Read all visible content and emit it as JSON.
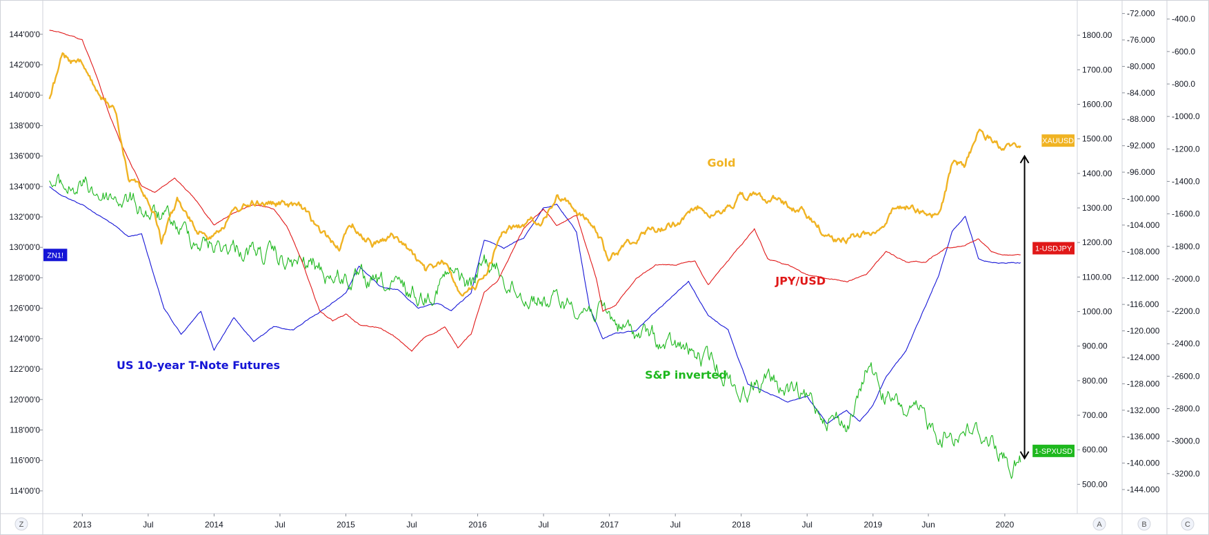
{
  "chart_data": {
    "type": "line",
    "x_tick_labels": [
      "2013",
      "Jul",
      "2014",
      "Jul",
      "2015",
      "Jul",
      "2016",
      "Jul",
      "2017",
      "Jul",
      "2018",
      "Jul",
      "2019",
      "Jun",
      "2020"
    ],
    "left_axis": {
      "ylim": [
        113.0,
        145.8
      ],
      "ticks": [
        "144'00'0",
        "142'00'0",
        "140'00'0",
        "138'00'0",
        "136'00'0",
        "134'00'0",
        "132'00'0",
        "130'00'0",
        "128'00'0",
        "126'00'0",
        "124'00'0",
        "122'00'0",
        "120'00'0",
        "118'00'0",
        "116'00'0",
        "114'00'0"
      ]
    },
    "axis_a": {
      "ylim": [
        437,
        1882
      ],
      "ticks": [
        "1800.00",
        "1700.00",
        "1600.00",
        "1500.00",
        "1400.00",
        "1300.00",
        "1200.00",
        "1100.00",
        "1000.00",
        "900.00",
        "800.00",
        "700.00",
        "600.00",
        "500.00"
      ]
    },
    "axis_b": {
      "ylim": [
        -146.5,
        -71.0
      ],
      "ticks": [
        "-72.000",
        "-76.000",
        "-80.000",
        "-84.000",
        "-88.000",
        "-92.000",
        "-96.000",
        "-100.000",
        "-104.000",
        "-108.000",
        "-112.000",
        "-116.000",
        "-120.000",
        "-124.000",
        "-128.000",
        "-132.000",
        "-136.000",
        "-140.000",
        "-144.000"
      ]
    },
    "axis_c": {
      "ylim": [
        -3400,
        -325
      ],
      "ticks": [
        "-400.0",
        "-600.0",
        "-800.0",
        "-1000.0",
        "-1200.0",
        "-1400.0",
        "-1600.0",
        "-1800.0",
        "-2000.0",
        "-2200.0",
        "-2400.0",
        "-2600.0",
        "-2800.0",
        "-3000.0",
        "-3200.0"
      ]
    },
    "axis_letters": [
      "Z",
      "A",
      "B",
      "C"
    ],
    "series": [
      {
        "name": "US 10-year T-Note Futures",
        "symbol": "ZN1!",
        "axis": "left",
        "color": "#1515d6",
        "x": [
          2012.75,
          2012.85,
          2013.0,
          2013.2,
          2013.35,
          2013.45,
          2013.55,
          2013.62,
          2013.75,
          2013.9,
          2014.0,
          2014.15,
          2014.3,
          2014.45,
          2014.6,
          2014.75,
          2014.85,
          2015.0,
          2015.1,
          2015.25,
          2015.4,
          2015.55,
          2015.7,
          2015.8,
          2015.95,
          2016.05,
          2016.2,
          2016.35,
          2016.5,
          2016.6,
          2016.75,
          2016.85,
          2016.95,
          2017.05,
          2017.2,
          2017.35,
          2017.5,
          2017.6,
          2017.75,
          2017.9,
          2018.05,
          2018.2,
          2018.35,
          2018.5,
          2018.65,
          2018.8,
          2018.9,
          2019.0,
          2019.1,
          2019.25,
          2019.4,
          2019.5,
          2019.6,
          2019.7,
          2019.8,
          2019.9,
          2020.0,
          2020.12
        ],
        "y": [
          134.0,
          133.4,
          132.8,
          131.7,
          130.7,
          130.9,
          128.0,
          126.0,
          124.3,
          125.8,
          123.2,
          125.4,
          123.8,
          124.8,
          124.6,
          125.5,
          126.0,
          127.0,
          128.8,
          127.5,
          127.2,
          126.0,
          126.3,
          125.8,
          127.0,
          130.5,
          130.0,
          130.6,
          132.6,
          132.8,
          131.0,
          126.0,
          124.0,
          124.4,
          124.5,
          125.8,
          127.0,
          127.8,
          125.5,
          124.6,
          121.0,
          120.5,
          119.8,
          120.2,
          118.4,
          119.3,
          118.5,
          119.6,
          121.5,
          123.2,
          126.2,
          128.2,
          131.0,
          132.0,
          129.3,
          129.0,
          129.0,
          129.0
        ]
      },
      {
        "name": "Gold",
        "symbol": "XAUUSD",
        "axis": "A",
        "color": "#f0b323",
        "x": [
          2012.75,
          2012.85,
          2013.0,
          2013.12,
          2013.25,
          2013.35,
          2013.42,
          2013.55,
          2013.6,
          2013.72,
          2013.85,
          2013.95,
          2014.05,
          2014.2,
          2014.35,
          2014.5,
          2014.65,
          2014.8,
          2014.95,
          2015.05,
          2015.2,
          2015.35,
          2015.5,
          2015.6,
          2015.75,
          2015.85,
          2015.95,
          2016.05,
          2016.2,
          2016.35,
          2016.5,
          2016.6,
          2016.75,
          2016.9,
          2017.0,
          2017.15,
          2017.3,
          2017.45,
          2017.6,
          2017.7,
          2017.85,
          2018.0,
          2018.1,
          2018.25,
          2018.45,
          2018.6,
          2018.75,
          2018.85,
          2019.0,
          2019.15,
          2019.3,
          2019.4,
          2019.5,
          2019.6,
          2019.7,
          2019.8,
          2019.9,
          2020.0,
          2020.12
        ],
        "y": [
          1620,
          1730,
          1710,
          1620,
          1580,
          1400,
          1380,
          1280,
          1200,
          1320,
          1240,
          1220,
          1250,
          1300,
          1320,
          1310,
          1300,
          1230,
          1190,
          1250,
          1200,
          1220,
          1170,
          1110,
          1140,
          1070,
          1060,
          1100,
          1240,
          1250,
          1270,
          1330,
          1300,
          1230,
          1150,
          1200,
          1240,
          1250,
          1270,
          1310,
          1280,
          1340,
          1330,
          1330,
          1290,
          1240,
          1200,
          1220,
          1230,
          1290,
          1310,
          1290,
          1280,
          1420,
          1420,
          1520,
          1500,
          1470,
          1480
        ]
      },
      {
        "name": "JPY/USD",
        "symbol": "1-USDJPY",
        "axis": "B",
        "color": "#e01818",
        "x": [
          2012.75,
          2012.85,
          2013.0,
          2013.1,
          2013.2,
          2013.3,
          2013.45,
          2013.55,
          2013.7,
          2013.85,
          2014.0,
          2014.15,
          2014.3,
          2014.45,
          2014.55,
          2014.65,
          2014.8,
          2014.9,
          2015.0,
          2015.1,
          2015.25,
          2015.35,
          2015.5,
          2015.6,
          2015.75,
          2015.85,
          2015.95,
          2016.05,
          2016.15,
          2016.35,
          2016.5,
          2016.6,
          2016.75,
          2016.9,
          2016.95,
          2017.05,
          2017.2,
          2017.35,
          2017.5,
          2017.65,
          2017.75,
          2017.85,
          2018.0,
          2018.1,
          2018.2,
          2018.35,
          2018.5,
          2018.65,
          2018.8,
          2018.95,
          2019.1,
          2019.25,
          2019.4,
          2019.55,
          2019.7,
          2019.8,
          2019.9,
          2020.0,
          2020.12
        ],
        "y": [
          -74.5,
          -75.0,
          -76.0,
          -81.0,
          -87.0,
          -92.0,
          -98.0,
          -99.0,
          -97.0,
          -100.0,
          -104.0,
          -102.0,
          -101.0,
          -101.5,
          -104.0,
          -108.5,
          -117.0,
          -118.5,
          -117.5,
          -119.0,
          -119.5,
          -120.5,
          -123.0,
          -121.0,
          -119.5,
          -122.5,
          -120.5,
          -114.0,
          -112.5,
          -104.5,
          -101.5,
          -104.0,
          -102.5,
          -112.0,
          -117.0,
          -116.0,
          -112.0,
          -110.0,
          -110.0,
          -109.5,
          -113.0,
          -110.5,
          -107.0,
          -104.5,
          -109.0,
          -110.0,
          -111.5,
          -112.0,
          -112.5,
          -111.5,
          -108.0,
          -109.5,
          -109.5,
          -107.5,
          -107.0,
          -106.0,
          -108.0,
          -108.5,
          -108.5
        ]
      },
      {
        "name": "S&P inverted",
        "symbol": "1-SPXUSD",
        "axis": "C",
        "color": "#1eb81e",
        "x": [
          2012.75,
          2012.85,
          2013.0,
          2013.15,
          2013.3,
          2013.45,
          2013.6,
          2013.75,
          2013.9,
          2014.05,
          2014.2,
          2014.35,
          2014.5,
          2014.6,
          2014.75,
          2014.85,
          2015.0,
          2015.15,
          2015.3,
          2015.45,
          2015.6,
          2015.7,
          2015.8,
          2015.95,
          2016.05,
          2016.15,
          2016.3,
          2016.45,
          2016.6,
          2016.75,
          2016.9,
          2017.0,
          2017.15,
          2017.3,
          2017.45,
          2017.6,
          2017.75,
          2017.9,
          2018.0,
          2018.1,
          2018.2,
          2018.35,
          2018.5,
          2018.65,
          2018.8,
          2018.9,
          2018.97,
          2019.05,
          2019.2,
          2019.35,
          2019.5,
          2019.6,
          2019.7,
          2019.8,
          2019.9,
          2020.0,
          2020.05,
          2020.12
        ],
        "y": [
          -1430,
          -1450,
          -1430,
          -1480,
          -1500,
          -1560,
          -1640,
          -1710,
          -1760,
          -1800,
          -1800,
          -1850,
          -1900,
          -1920,
          -1920,
          -1960,
          -1990,
          -2050,
          -2070,
          -2090,
          -2100,
          -2000,
          -1980,
          -2050,
          -1900,
          -1940,
          -2070,
          -2100,
          -2150,
          -2140,
          -2180,
          -2250,
          -2330,
          -2360,
          -2440,
          -2460,
          -2520,
          -2580,
          -2710,
          -2640,
          -2630,
          -2690,
          -2780,
          -2810,
          -2900,
          -2730,
          -2500,
          -2680,
          -2810,
          -2870,
          -2940,
          -2950,
          -2900,
          -2950,
          -2980,
          -3080,
          -3140,
          -3130
        ]
      }
    ],
    "annotations": [
      {
        "text": "US 10-year T-Note Futures",
        "x": 2013.88,
        "y": 122.0,
        "axis": "left",
        "color": "#1515d6"
      },
      {
        "text": "Gold",
        "x": 2017.85,
        "y": 1420,
        "axis": "A",
        "color": "#f0b323"
      },
      {
        "text": "JPY/USD",
        "x": 2018.45,
        "y": -113.0,
        "axis": "B",
        "color": "#e01818"
      },
      {
        "text": "S&P inverted",
        "x": 2017.58,
        "y": -2615,
        "axis": "C",
        "color": "#1eb81e"
      }
    ],
    "badges": [
      {
        "text": "ZN1!",
        "bg": "#1515d6",
        "side": "left",
        "axis": "left",
        "y": 129.5
      },
      {
        "text": "XAUUSD",
        "bg": "#f0b323",
        "side": "right",
        "axis": "A",
        "y": 1495
      },
      {
        "text": "1-USDJPY",
        "bg": "#e01818",
        "side": "right",
        "axis": "B",
        "y": -107.5
      },
      {
        "text": "1-SPXUSD",
        "bg": "#1eb81e",
        "side": "right",
        "axis": "C",
        "y": -3060
      }
    ],
    "arrow": {
      "x": 2020.15,
      "y_top": 1450,
      "y_bottom": 575,
      "axis": "A"
    }
  }
}
